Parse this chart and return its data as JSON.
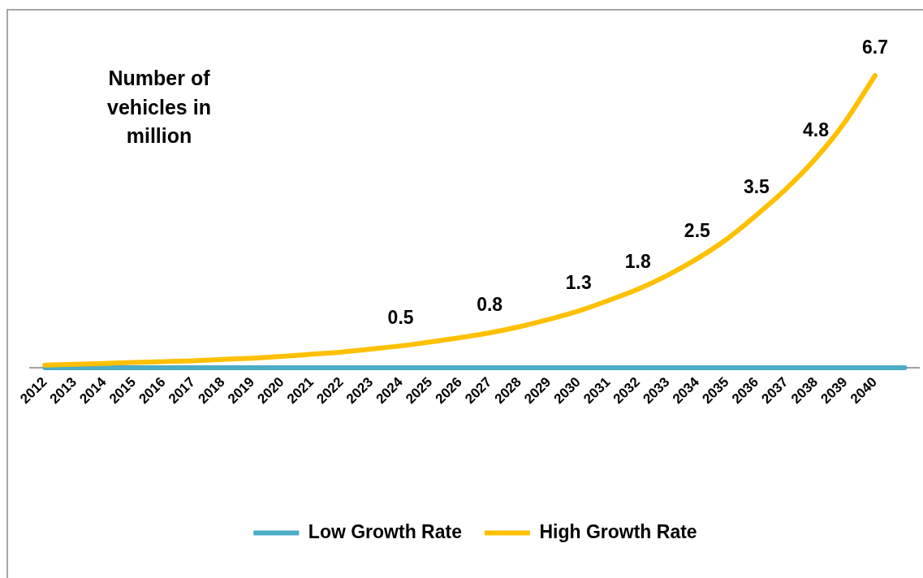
{
  "chart_data": {
    "type": "line",
    "ylabel": "Number of vehicles in million",
    "categories": [
      "2012",
      "2013",
      "2014",
      "2015",
      "2016",
      "2017",
      "2018",
      "2019",
      "2020",
      "2021",
      "2022",
      "2023",
      "2024",
      "2025",
      "2026",
      "2027",
      "2028",
      "2029",
      "2030",
      "2031",
      "2032",
      "2033",
      "2034",
      "2035",
      "2036",
      "2037",
      "2038",
      "2039",
      "2040",
      null
    ],
    "series": [
      {
        "name": "Low Growth Rate",
        "color": "#4bacc6",
        "values": [
          0,
          0,
          0,
          0,
          0,
          0,
          0,
          0,
          0,
          0,
          0,
          0,
          0,
          0,
          0,
          0,
          0,
          0,
          0,
          0,
          0,
          0,
          0,
          0,
          0,
          0,
          0,
          0,
          0,
          0
        ]
      },
      {
        "name": "High Growth Rate",
        "color": "#ffc000",
        "values": [
          0.06,
          0.08,
          0.1,
          0.12,
          0.14,
          0.16,
          0.19,
          0.22,
          0.26,
          0.31,
          0.36,
          0.43,
          0.5,
          0.59,
          0.69,
          0.8,
          0.94,
          1.11,
          1.3,
          1.54,
          1.8,
          2.12,
          2.5,
          2.95,
          3.5,
          4.1,
          4.8,
          5.65,
          6.7,
          null
        ],
        "value_labels": [
          null,
          null,
          null,
          null,
          null,
          null,
          null,
          null,
          null,
          null,
          null,
          null,
          "0.5",
          null,
          null,
          "0.8",
          null,
          null,
          "1.3",
          null,
          "1.8",
          null,
          "2.5",
          null,
          "3.5",
          null,
          "4.8",
          null,
          "6.7",
          null
        ]
      }
    ],
    "legend": "bottom",
    "marker": "none",
    "tick_labels": "x"
  }
}
